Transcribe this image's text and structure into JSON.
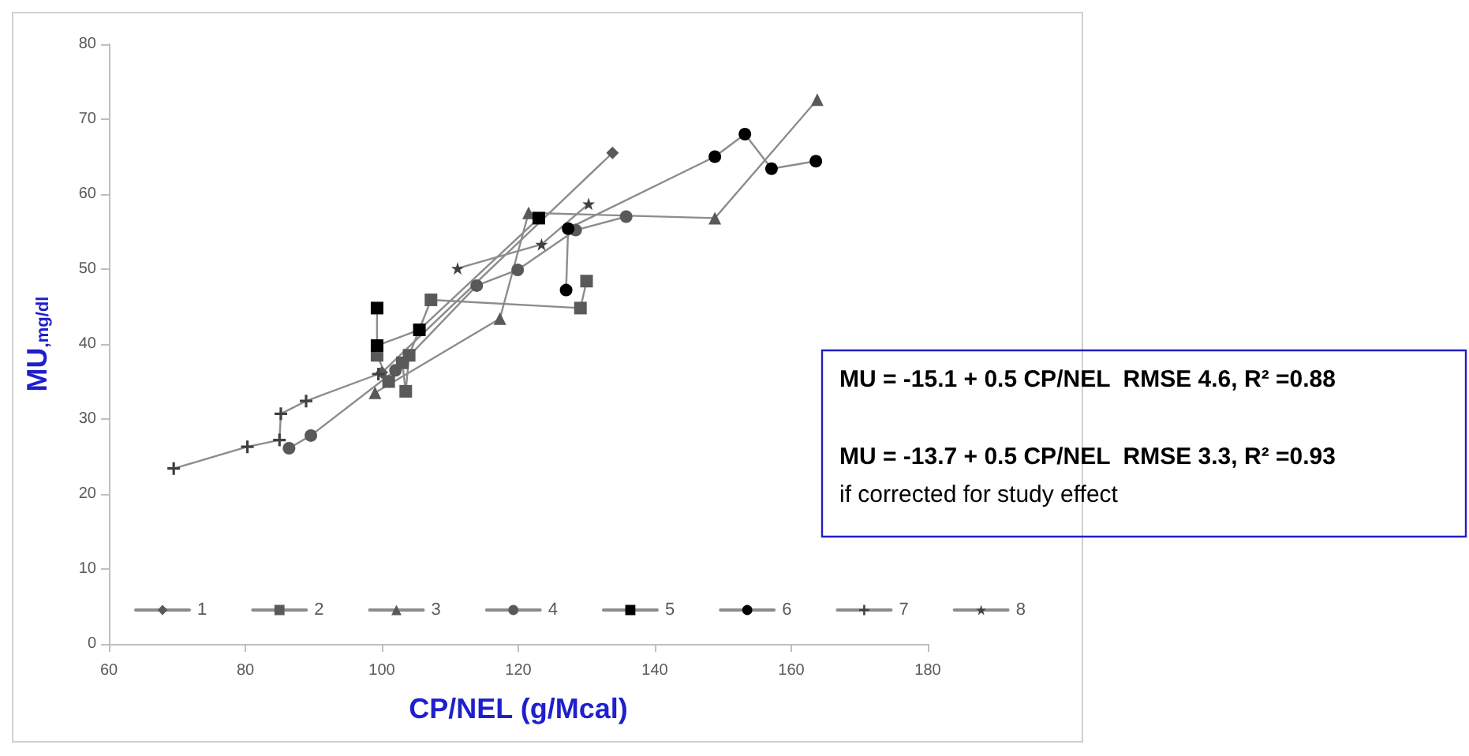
{
  "chart_data": {
    "type": "line",
    "xlabel": "CP/NEL (g/Mcal)",
    "ylabel": "MU$_{,mg/dl}$",
    "xlim": [
      60,
      180
    ],
    "xticks": [
      60,
      80,
      100,
      120,
      140,
      160,
      180
    ],
    "ylim": [
      0,
      80
    ],
    "yticks": [
      0,
      10,
      20,
      30,
      40,
      50,
      60,
      70,
      80
    ],
    "grid": false,
    "legend": "bottom",
    "line_style": "solid",
    "series": [
      {
        "name": "1",
        "color": "#595959",
        "marker": "diamond",
        "x": [
          100,
          133.8
        ],
        "values": [
          36.2,
          65.5
        ]
      },
      {
        "name": "2",
        "color": "#595959",
        "marker": "square",
        "x": [
          99.3,
          101,
          103,
          103.5,
          104,
          107.2,
          129.1,
          130
        ],
        "values": [
          38.5,
          35,
          37.5,
          33.7,
          38.5,
          45.9,
          44.8,
          48.4
        ]
      },
      {
        "name": "3",
        "color": "#595959",
        "marker": "triangle",
        "x": [
          99,
          117.3,
          121.5,
          148.8,
          163.8
        ],
        "values": [
          33.5,
          43.4,
          57.5,
          56.8,
          72.6
        ]
      },
      {
        "name": "4",
        "color": "#595959",
        "marker": "circle",
        "x": [
          86.4,
          89.6,
          102,
          113.9,
          119.9,
          128.4,
          135.8
        ],
        "values": [
          26.1,
          27.8,
          36.5,
          47.8,
          49.9,
          55.2,
          57
        ]
      },
      {
        "name": "5",
        "color": "#000000",
        "marker": "square",
        "x": [
          99.3,
          99.3,
          105.5,
          123
        ],
        "values": [
          44.8,
          39.8,
          41.9,
          56.8
        ]
      },
      {
        "name": "6",
        "color": "#000000",
        "marker": "circle",
        "x": [
          127,
          127.3,
          148.8,
          153.2,
          157.1,
          163.6
        ],
        "values": [
          47.2,
          55.4,
          65,
          68,
          63.4,
          64.4
        ]
      },
      {
        "name": "7",
        "color": "#404040",
        "marker": "cross",
        "x": [
          69.5,
          80.3,
          85,
          85.2,
          88.9,
          99.5
        ],
        "values": [
          23.4,
          26.3,
          27.2,
          30.7,
          32.4,
          36
        ]
      },
      {
        "name": "8",
        "color": "#404040",
        "marker": "star",
        "x": [
          111.1,
          123.4,
          130.3
        ],
        "values": [
          50.1,
          53.3,
          58.7
        ]
      }
    ],
    "annotations": [
      "MU = -15.1 + 0.5 CP/NEL  RMSE 4.6, R² =0.88",
      "MU = -13.7 + 0.5 CP/NEL  RMSE 3.3, R² =0.93",
      "if corrected for study effect"
    ]
  }
}
